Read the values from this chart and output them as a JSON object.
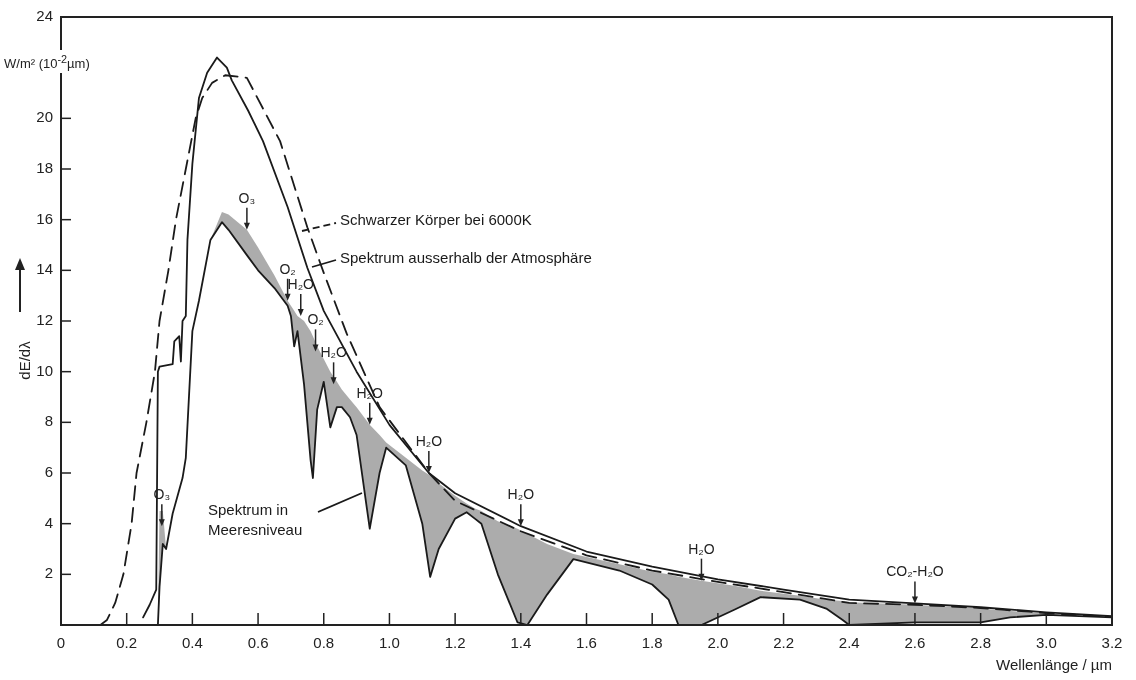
{
  "chart_data": {
    "type": "line",
    "xlabel": "Wellenlänge / µm",
    "ylabel": "dE/dλ",
    "marker": "none",
    "xlim": [
      0,
      3.2
    ],
    "xticks": [
      0,
      0.2,
      0.4,
      0.6,
      0.8,
      {
        "value": 1,
        "label": "1.0"
      },
      1.2,
      1.4,
      1.6,
      1.8,
      {
        "value": 2,
        "label": "2.0"
      },
      2.2,
      2.4,
      2.6,
      2.8,
      {
        "value": 3,
        "label": "3.0"
      },
      3.2
    ],
    "ylim": [
      0,
      24
    ],
    "yticks": [
      2,
      4,
      6,
      8,
      10,
      12,
      14,
      16,
      18,
      20,
      24
    ],
    "series": [
      {
        "name": "Schwarzer Körper bei 6000K",
        "color": "#1a1a1a",
        "line_style": "dashed",
        "x": [
          0.12,
          0.14,
          0.165,
          0.19,
          0.215,
          0.23,
          0.26,
          0.286,
          0.3,
          0.327,
          0.35,
          0.38,
          0.41,
          0.43,
          0.46,
          0.5,
          0.566,
          0.667,
          0.75,
          0.8,
          0.87,
          0.97,
          1.12,
          1.2,
          1.4,
          1.6,
          1.8,
          2.0,
          2.2,
          2.4,
          2.6,
          2.8,
          3.0,
          3.2
        ],
        "values": [
          0,
          0.2,
          0.87,
          2.0,
          4.0,
          6.0,
          8.0,
          10.0,
          12.0,
          14.0,
          16.0,
          18.0,
          20.0,
          20.8,
          21.4,
          21.7,
          21.6,
          19.1,
          15.7,
          13.9,
          11.5,
          8.6,
          6.0,
          4.9,
          3.7,
          2.75,
          2.15,
          1.7,
          1.3,
          0.87,
          0.8,
          0.67,
          0.47,
          0.32
        ]
      },
      {
        "name": "Spektrum ausserhalb der Atmosphäre",
        "color": "#1a1a1a",
        "line_style": "solid",
        "x": [
          0.25,
          0.27,
          0.29,
          0.295,
          0.3,
          0.34,
          0.345,
          0.36,
          0.365,
          0.37,
          0.38,
          0.385,
          0.4,
          0.42,
          0.445,
          0.475,
          0.505,
          0.52,
          0.57,
          0.615,
          0.69,
          0.75,
          0.8,
          0.9,
          1.0,
          1.12,
          1.2,
          1.4,
          1.6,
          1.8,
          2.0,
          2.2,
          2.4,
          2.6,
          2.8,
          3.0,
          3.2
        ],
        "values": [
          0.3,
          0.8,
          1.4,
          10.0,
          10.2,
          10.3,
          11.2,
          11.4,
          10.4,
          12.0,
          12.2,
          15.2,
          18.2,
          20.8,
          21.8,
          22.4,
          22.0,
          21.5,
          20.3,
          19.1,
          16.5,
          14.1,
          12.4,
          10.0,
          7.9,
          6.0,
          5.2,
          3.9,
          2.9,
          2.3,
          1.8,
          1.4,
          1.0,
          0.85,
          0.7,
          0.5,
          0.35
        ]
      },
      {
        "name": "Spektrum in Meeresniveau",
        "color": "#1a1a1a",
        "line_style": "solid",
        "x": [
          0.295,
          0.3,
          0.31,
          0.32,
          0.34,
          0.37,
          0.38,
          0.4,
          0.42,
          0.455,
          0.49,
          0.51,
          0.566,
          0.6,
          0.65,
          0.69,
          0.7,
          0.71,
          0.72,
          0.74,
          0.76,
          0.767,
          0.78,
          0.8,
          0.82,
          0.84,
          0.855,
          0.88,
          0.9,
          0.94,
          0.97,
          0.99,
          1.05,
          1.1,
          1.124,
          1.15,
          1.2,
          1.235,
          1.26,
          1.28,
          1.33,
          1.39,
          1.42,
          1.48,
          1.56,
          1.7,
          1.8,
          1.85,
          1.88,
          1.95,
          2.05,
          2.13,
          2.25,
          2.33,
          2.38,
          2.4,
          2.6,
          2.8,
          2.89,
          3.0,
          3.2
        ],
        "values": [
          0,
          1.5,
          3.2,
          3.0,
          4.4,
          5.8,
          6.6,
          11.6,
          12.8,
          15.2,
          15.9,
          15.6,
          14.6,
          14.0,
          13.3,
          12.6,
          12.2,
          11.0,
          11.6,
          9.5,
          6.5,
          5.8,
          8.5,
          9.6,
          7.8,
          8.6,
          8.6,
          8.2,
          7.5,
          3.8,
          6.0,
          7.0,
          6.3,
          4.0,
          1.9,
          3.0,
          4.2,
          4.45,
          4.2,
          4.0,
          2.0,
          0.1,
          0,
          1.2,
          2.6,
          2.15,
          1.6,
          1.0,
          0,
          0,
          0.6,
          1.1,
          1.0,
          0.65,
          0.2,
          0,
          0.1,
          0.1,
          0.3,
          0.4,
          0.3
        ],
        "lower": [
          0,
          1.5,
          3.2,
          3.0,
          4.4,
          5.8,
          6.6,
          11.6,
          12.8,
          15.2,
          15.9,
          15.6,
          14.6,
          14.0,
          13.3,
          12.6,
          12.2,
          11.0,
          11.6,
          9.5,
          6.5,
          5.8,
          8.5,
          9.6,
          7.8,
          8.6,
          8.6,
          8.2,
          7.5,
          3.8,
          6.0,
          7.0,
          6.3,
          4.0,
          1.9,
          3.0,
          4.2,
          4.45,
          4.2,
          4.0,
          2.0,
          0.1,
          0,
          1.2,
          2.6,
          2.15,
          1.6,
          1.0,
          0,
          0,
          0.6,
          1.1,
          1.0,
          0.65,
          0.2,
          0,
          0.1,
          0.1,
          0.3,
          0.4,
          0.3
        ],
        "upper": [
          0,
          4.5,
          4.5,
          3.0,
          4.4,
          5.8,
          6.6,
          11.6,
          12.8,
          15.2,
          16.3,
          16.2,
          15.6,
          14.9,
          13.8,
          12.8,
          12.6,
          12.4,
          12.2,
          12.0,
          11.6,
          11.4,
          11.0,
          10.5,
          10.0,
          9.6,
          9.3,
          8.9,
          8.6,
          7.9,
          7.5,
          7.2,
          6.6,
          6.1,
          5.9,
          5.6,
          5.1,
          4.8,
          4.6,
          4.5,
          4.1,
          3.8,
          3.6,
          3.2,
          2.8,
          2.4,
          2.1,
          2.0,
          1.9,
          1.75,
          1.55,
          1.35,
          1.15,
          1.0,
          0.95,
          0.9,
          0.8,
          0.65,
          0.55,
          0.45,
          0.3
        ]
      }
    ],
    "legend": "top",
    "annotations": [
      "W/m² (10$^{-2}$µm)",
      {
        "text": "O₃",
        "x": 0.566,
        "y": 15.6
      },
      {
        "text": "O₂",
        "x": 0.69,
        "y": 12.8
      },
      {
        "text": "H₂O",
        "x": 0.73,
        "y": 12.2
      },
      {
        "text": "O₂",
        "x": 0.775,
        "y": 10.8
      },
      {
        "text": "H₂O",
        "x": 0.83,
        "y": 9.5
      },
      {
        "text": "H₂O",
        "x": 0.94,
        "y": 7.9
      },
      {
        "text": "H₂O",
        "x": 1.12,
        "y": 6.0
      },
      {
        "text": "H₂O",
        "x": 1.4,
        "y": 3.9
      },
      {
        "text": "H₂O",
        "x": 1.95,
        "y": 1.75
      },
      {
        "text": "CO₂-H₂O",
        "x": 2.6,
        "y": 0.85
      },
      {
        "text": "O₃",
        "x": 0.307,
        "y": 3.9
      }
    ]
  }
}
